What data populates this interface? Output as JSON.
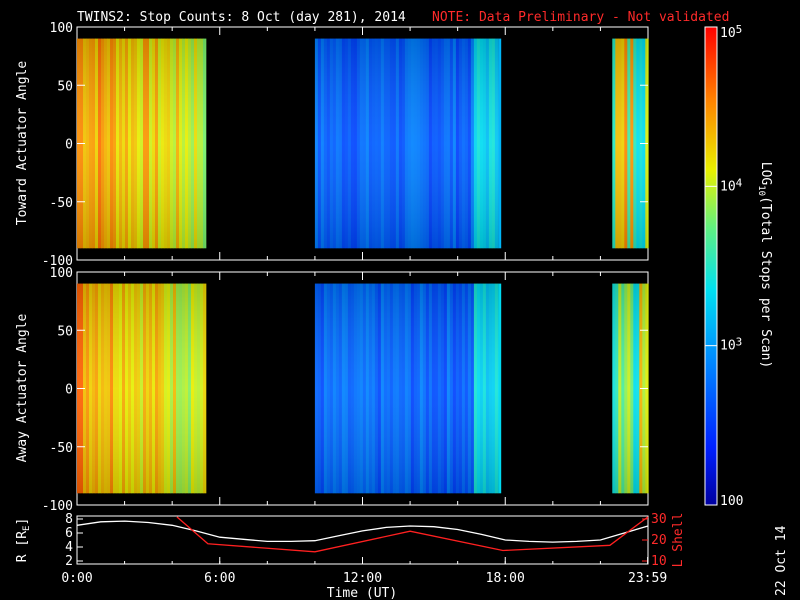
{
  "title": {
    "main": "TWINS2: Stop Counts:  8 Oct (day 281), 2014",
    "note": "NOTE: Data Preliminary - Not validated",
    "note_color": "#ff2020"
  },
  "stamp": "22 Oct 14",
  "chart_data": [
    {
      "id": "toward",
      "type": "heatmap",
      "ylabel": "Toward Actuator Angle",
      "yticks": [
        "100",
        "50",
        "0",
        "-50",
        "-100"
      ],
      "ylim": [
        -100,
        100
      ],
      "xlim_hours": [
        0,
        24
      ],
      "data_y_range": [
        -90,
        90
      ],
      "segments": [
        {
          "start": "0:00",
          "end": "5:25",
          "level": 4.5
        },
        {
          "start": "10:00",
          "end": "17:45",
          "level": 2.9
        },
        {
          "start": "22:30",
          "end": "23:59",
          "level": 4.3
        }
      ]
    },
    {
      "id": "away",
      "type": "heatmap",
      "ylabel": "Away Actuator Angle",
      "yticks": [
        "100",
        "50",
        "0",
        "-50",
        "-100"
      ],
      "ylim": [
        -100,
        100
      ],
      "xlim_hours": [
        0,
        24
      ],
      "data_y_range": [
        -90,
        90
      ],
      "segments": [
        {
          "start": "0:00",
          "end": "5:25",
          "level": 4.5
        },
        {
          "start": "10:00",
          "end": "17:45",
          "level": 2.9
        },
        {
          "start": "22:30",
          "end": "23:59",
          "level": 4.3
        }
      ]
    },
    {
      "id": "orbit",
      "type": "line",
      "xlabel": "Time (UT)",
      "xticks": [
        "0:00",
        "6:00",
        "12:00",
        "18:00",
        "23:59"
      ],
      "ylabel_left": "R [R",
      "ylabel_left_sub": "E",
      "ylabel_left_end": "]",
      "ylabel_right": "L Shell",
      "ylim_left": [
        2,
        8
      ],
      "yticks_left": [
        "8",
        "6",
        "4",
        "2"
      ],
      "ylim_right": [
        10,
        30
      ],
      "yticks_right": [
        "30",
        "20",
        "10"
      ],
      "series": [
        {
          "axis": "left",
          "color": "#ffffff",
          "x": [
            0,
            1,
            2,
            3,
            4,
            5,
            6,
            7,
            8,
            9,
            10,
            11,
            12,
            13,
            14,
            15,
            16,
            17,
            18,
            19,
            20,
            21,
            22,
            23,
            24
          ],
          "y": [
            7.1,
            7.6,
            7.7,
            7.5,
            7.1,
            6.3,
            5.4,
            5.1,
            4.8,
            4.8,
            4.9,
            5.6,
            6.3,
            6.8,
            7.0,
            6.9,
            6.5,
            5.8,
            5.0,
            4.8,
            4.7,
            4.8,
            5.0,
            6.0,
            7.0
          ]
        },
        {
          "axis": "right",
          "color": "#ff2020",
          "x": [
            4.2,
            5.5,
            10.0,
            14.0,
            17.9,
            22.4,
            24.0
          ],
          "y": [
            31,
            18.2,
            14.4,
            24.2,
            15.0,
            17.5,
            31
          ]
        }
      ]
    },
    {
      "id": "colorbar",
      "type": "colorbar",
      "label": "LOG",
      "label_sub": "10",
      "label_rest": "(Total Stops per Scan)",
      "scale": "log",
      "range": [
        100,
        100000
      ],
      "ticks": [
        {
          "base": "10",
          "exp": "5",
          "value": 5
        },
        {
          "base": "10",
          "exp": "4",
          "value": 4
        },
        {
          "base": "10",
          "exp": "3",
          "value": 3
        },
        {
          "base": "100",
          "exp": "",
          "value": 2
        }
      ]
    }
  ]
}
